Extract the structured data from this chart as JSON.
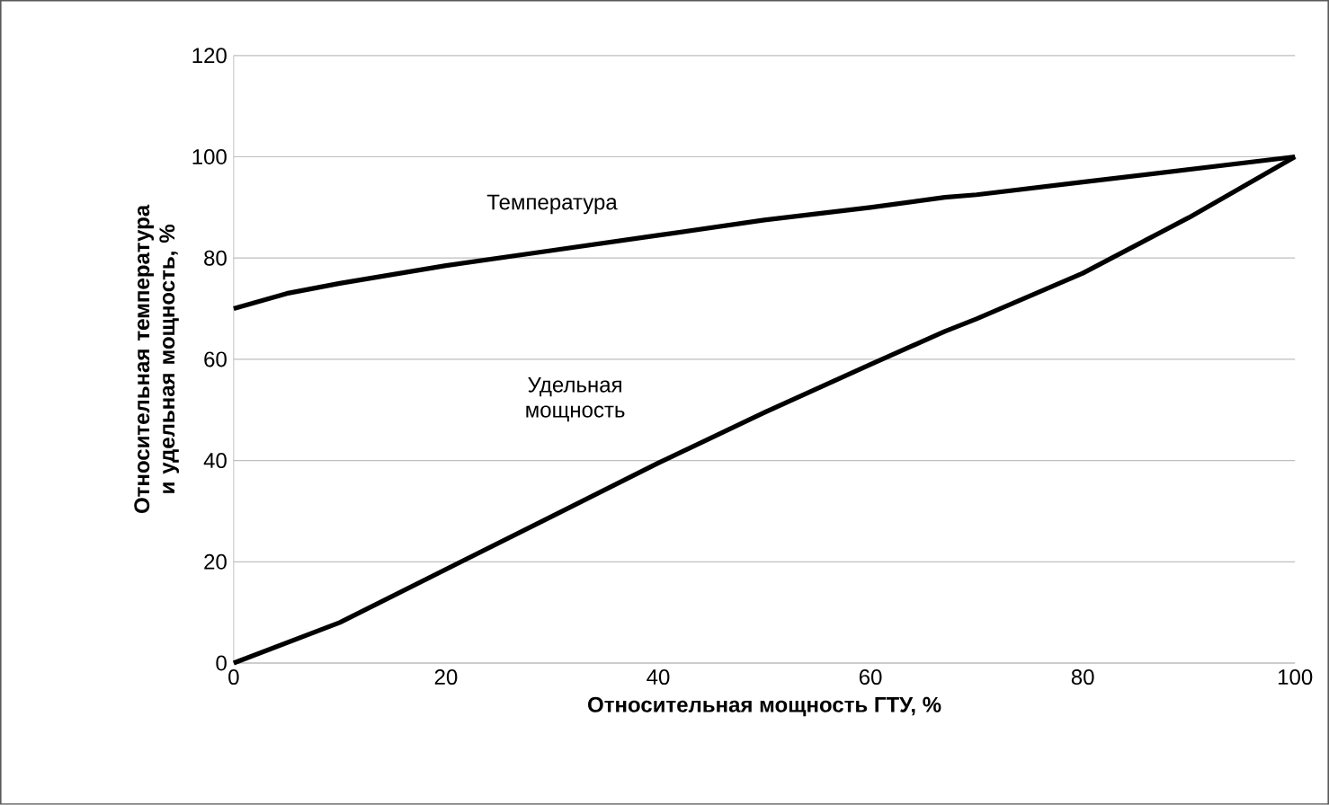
{
  "chart_data": {
    "type": "line",
    "xlabel": "Относительная мощность ГТУ, %",
    "ylabel": "Относительная температура и удельная мощность, %",
    "xlim": [
      0,
      100
    ],
    "ylim": [
      0,
      120
    ],
    "xticks": [
      0,
      20,
      40,
      60,
      80,
      100
    ],
    "yticks": [
      0,
      20,
      40,
      60,
      80,
      100,
      120
    ],
    "grid": "y",
    "legend": false,
    "marker": "none",
    "line_style": "solid",
    "series": [
      {
        "name": "Температура",
        "color": "#000000",
        "x": [
          0,
          5,
          10,
          20,
          30,
          40,
          50,
          60,
          67,
          70,
          80,
          90,
          100
        ],
        "values": [
          70,
          73,
          75,
          78.5,
          81.5,
          84.5,
          87.5,
          90,
          92,
          92.5,
          95,
          97.5,
          100
        ]
      },
      {
        "name": "Удельная мощность",
        "color": "#000000",
        "x": [
          0,
          10,
          20,
          30,
          40,
          50,
          60,
          67,
          70,
          80,
          90,
          100
        ],
        "values": [
          0,
          8,
          18.5,
          29,
          39.5,
          49.5,
          59,
          65.5,
          68,
          77,
          88,
          100
        ]
      }
    ]
  }
}
